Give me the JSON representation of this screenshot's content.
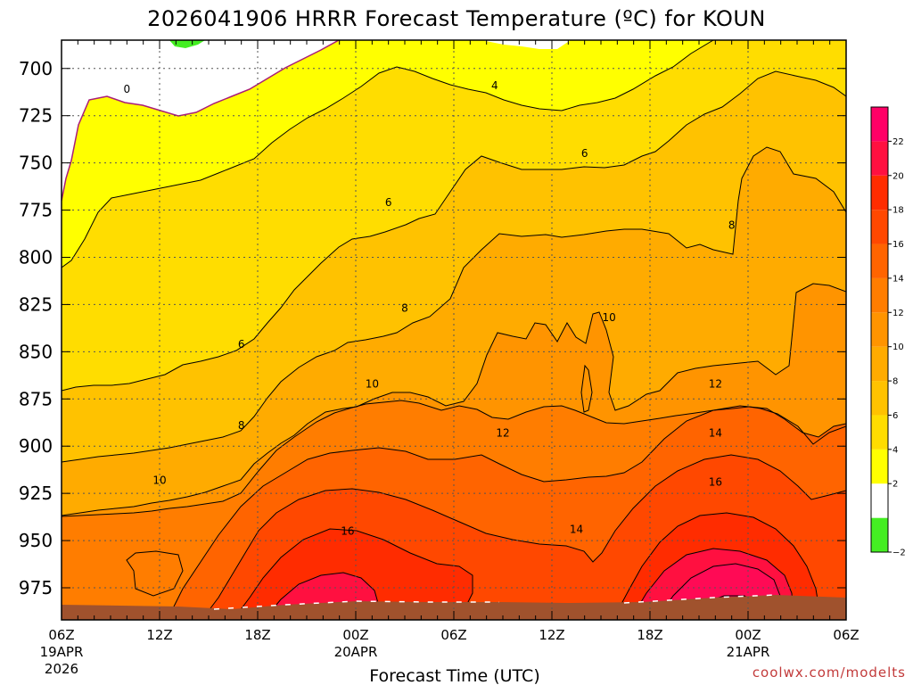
{
  "title": "2026041906 HRRR Forecast Temperature (ºC) for KOUN",
  "credit": "coolwx.com/modelts",
  "chart_data": {
    "type": "contour",
    "title": "2026041906 HRRR Forecast Temperature (ºC) for KOUN",
    "xlabel": "Forecast Time (UTC)",
    "ylabel": "",
    "x_ticks": [
      {
        "label": "06Z",
        "sub": "19APR",
        "sub2": "2026"
      },
      {
        "label": "12Z",
        "sub": "",
        "sub2": ""
      },
      {
        "label": "18Z",
        "sub": "",
        "sub2": ""
      },
      {
        "label": "00Z",
        "sub": "20APR",
        "sub2": ""
      },
      {
        "label": "06Z",
        "sub": "",
        "sub2": ""
      },
      {
        "label": "12Z",
        "sub": "",
        "sub2": ""
      },
      {
        "label": "18Z",
        "sub": "",
        "sub2": ""
      },
      {
        "label": "00Z",
        "sub": "21APR",
        "sub2": ""
      },
      {
        "label": "06Z",
        "sub": "",
        "sub2": ""
      }
    ],
    "y_ticks": [
      "700",
      "725",
      "750",
      "775",
      "800",
      "825",
      "850",
      "875",
      "900",
      "925",
      "950",
      "975"
    ],
    "y_values": [
      700,
      725,
      750,
      775,
      800,
      825,
      850,
      875,
      900,
      925,
      950,
      975
    ],
    "ylim": [
      685,
      992
    ],
    "x_range_hours": [
      0,
      48
    ],
    "colorbar": {
      "levels": [
        -2,
        0,
        2,
        4,
        6,
        8,
        10,
        12,
        14,
        16,
        18,
        20,
        22,
        24
      ],
      "tick_labels": [
        "−2",
        "2",
        "4",
        "6",
        "8",
        "10",
        "12",
        "14",
        "16",
        "18",
        "20",
        "22"
      ],
      "tick_values": [
        -2,
        2,
        4,
        6,
        8,
        10,
        12,
        14,
        16,
        18,
        20,
        22
      ],
      "colors": [
        "#44ee22",
        "#ffffff",
        "#ffff00",
        "#ffdd00",
        "#ffc200",
        "#ffab00",
        "#ff9400",
        "#ff7d00",
        "#ff6400",
        "#ff4800",
        "#ff2c00",
        "#ff1040",
        "#ff0066"
      ]
    },
    "contour_labels": [
      {
        "text": "0",
        "x": 4.0,
        "p": 711
      },
      {
        "text": "4",
        "x": 26.5,
        "p": 709
      },
      {
        "text": "6",
        "x": 32.0,
        "p": 745
      },
      {
        "text": "6",
        "x": 20.0,
        "p": 771
      },
      {
        "text": "8",
        "x": 41.0,
        "p": 783
      },
      {
        "text": "8",
        "x": 21.0,
        "p": 827
      },
      {
        "text": "10",
        "x": 33.5,
        "p": 832
      },
      {
        "text": "6",
        "x": 11.0,
        "p": 846
      },
      {
        "text": "10",
        "x": 19.0,
        "p": 867
      },
      {
        "text": "12",
        "x": 40.0,
        "p": 867
      },
      {
        "text": "8",
        "x": 11.0,
        "p": 889
      },
      {
        "text": "12",
        "x": 27.0,
        "p": 893
      },
      {
        "text": "14",
        "x": 40.0,
        "p": 893
      },
      {
        "text": "10",
        "x": 6.0,
        "p": 918
      },
      {
        "text": "16",
        "x": 40.0,
        "p": 919
      },
      {
        "text": "16",
        "x": 17.5,
        "p": 945
      },
      {
        "text": "14",
        "x": 31.5,
        "p": 944
      }
    ]
  }
}
